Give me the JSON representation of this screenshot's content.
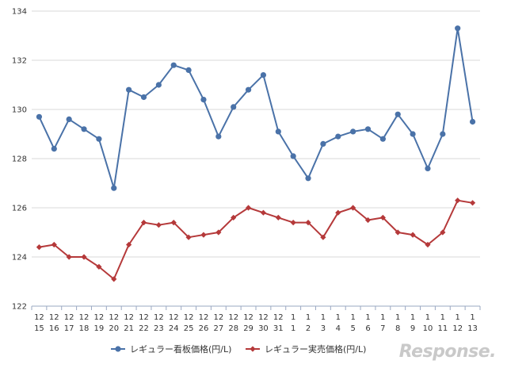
{
  "chart_data": {
    "type": "line",
    "title": "",
    "xlabel": "",
    "ylabel": "",
    "ylim": [
      122,
      134
    ],
    "yticks": [
      122,
      124,
      126,
      128,
      130,
      132,
      134
    ],
    "grid": "horizontal",
    "legend_position": "bottom",
    "categories": [
      [
        "12",
        "15"
      ],
      [
        "12",
        "16"
      ],
      [
        "12",
        "17"
      ],
      [
        "12",
        "18"
      ],
      [
        "12",
        "19"
      ],
      [
        "12",
        "20"
      ],
      [
        "12",
        "21"
      ],
      [
        "12",
        "22"
      ],
      [
        "12",
        "23"
      ],
      [
        "12",
        "24"
      ],
      [
        "12",
        "25"
      ],
      [
        "12",
        "26"
      ],
      [
        "12",
        "27"
      ],
      [
        "12",
        "28"
      ],
      [
        "12",
        "29"
      ],
      [
        "12",
        "30"
      ],
      [
        "12",
        "31"
      ],
      [
        "1",
        "1"
      ],
      [
        "1",
        "2"
      ],
      [
        "1",
        "3"
      ],
      [
        "1",
        "4"
      ],
      [
        "1",
        "5"
      ],
      [
        "1",
        "6"
      ],
      [
        "1",
        "7"
      ],
      [
        "1",
        "8"
      ],
      [
        "1",
        "9"
      ],
      [
        "1",
        "10"
      ],
      [
        "1",
        "11"
      ],
      [
        "1",
        "12"
      ],
      [
        "1",
        "13"
      ]
    ],
    "series": [
      {
        "name": "レギュラー看板価格(円/L)",
        "color": "#4a72a8",
        "marker": "circle",
        "values": [
          129.7,
          128.4,
          129.6,
          129.2,
          128.8,
          126.8,
          130.8,
          130.5,
          131.0,
          131.8,
          131.6,
          130.4,
          128.9,
          130.1,
          130.8,
          131.4,
          129.1,
          128.1,
          127.2,
          128.6,
          128.9,
          129.1,
          129.2,
          128.8,
          129.8,
          129.0,
          127.6,
          129.0,
          133.3,
          129.5
        ]
      },
      {
        "name": "レギュラー実売価格(円/L)",
        "color": "#b5393a",
        "marker": "diamond",
        "values": [
          124.4,
          124.5,
          124.0,
          124.0,
          123.6,
          123.1,
          124.5,
          125.4,
          125.3,
          125.4,
          124.8,
          124.9,
          125.0,
          125.6,
          126.0,
          125.8,
          125.6,
          125.4,
          125.4,
          124.8,
          125.8,
          126.0,
          125.5,
          125.6,
          125.0,
          124.9,
          124.5,
          125.0,
          126.3,
          126.2
        ]
      }
    ]
  },
  "watermark": "Response."
}
